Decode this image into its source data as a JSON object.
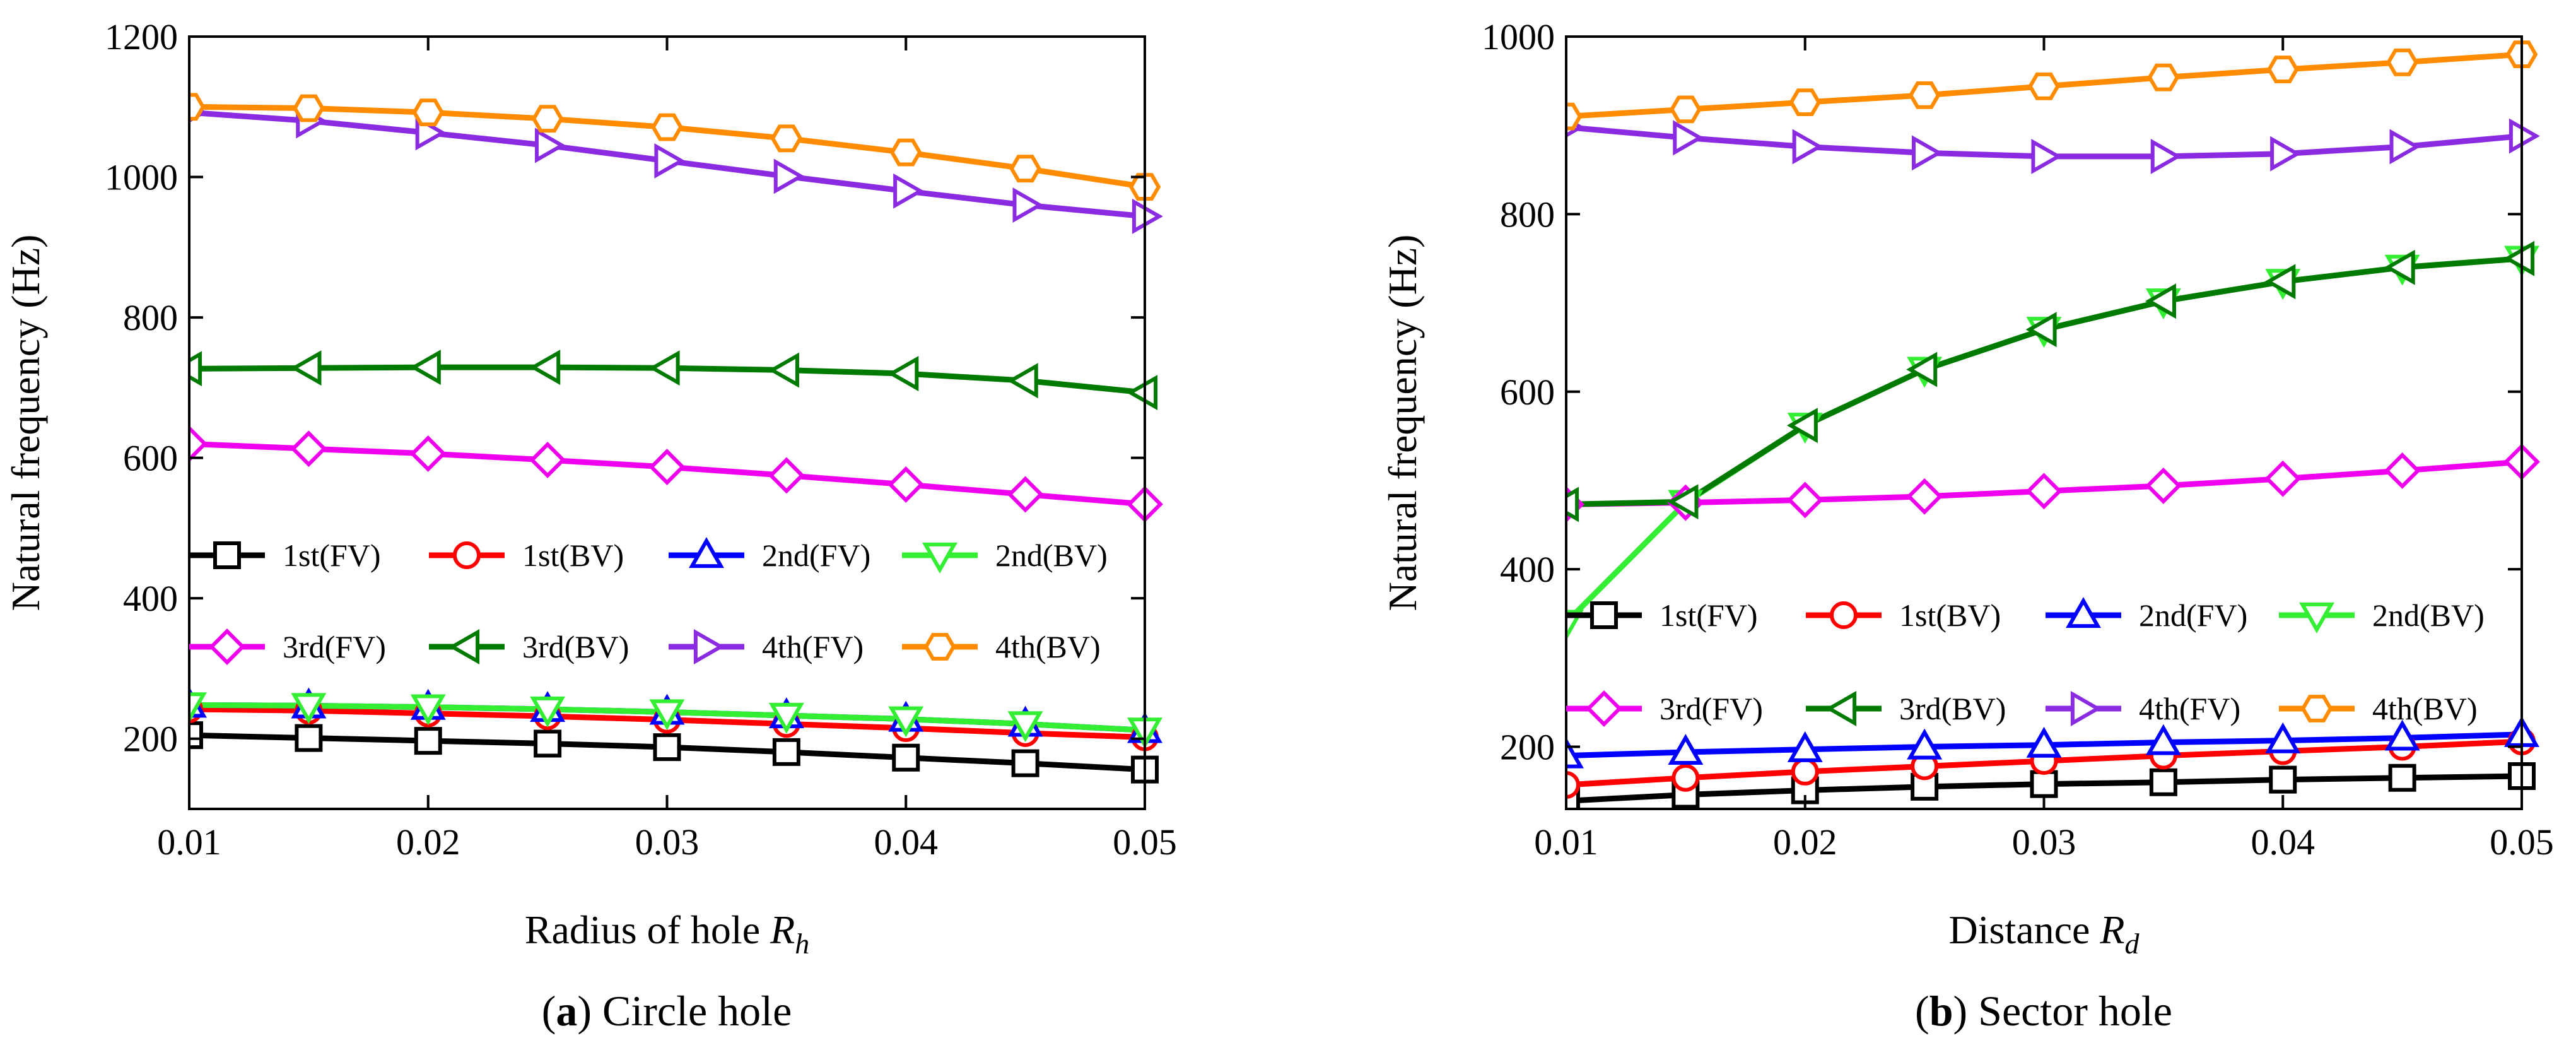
{
  "chart_data": [
    {
      "type": "line",
      "caption_tag": "(a)",
      "caption_text": "Circle hole",
      "xlabel": "Radius of hole R",
      "xlabel_sub": "h",
      "ylabel": "Natural frequency (Hz)",
      "xlim": [
        0.01,
        0.05
      ],
      "ylim": [
        100,
        1200
      ],
      "xticks": [
        "0.01",
        "0.02",
        "0.03",
        "0.04",
        "0.05"
      ],
      "xtick_values": [
        0.01,
        0.02,
        0.03,
        0.04,
        0.05
      ],
      "yticks": [
        "200",
        "400",
        "600",
        "800",
        "1000",
        "1200"
      ],
      "ytick_values": [
        200,
        400,
        600,
        800,
        1000,
        1200
      ],
      "x": [
        0.01,
        0.015,
        0.02,
        0.025,
        0.03,
        0.035,
        0.04,
        0.045,
        0.05
      ],
      "series": [
        {
          "name": "1st(FV)",
          "color": "#000000",
          "marker": "square",
          "values": [
            205,
            201,
            197,
            193,
            188,
            181,
            173,
            165,
            156
          ]
        },
        {
          "name": "1st(BV)",
          "color": "#ff0000",
          "marker": "circle",
          "values": [
            242,
            240,
            236,
            232,
            227,
            221,
            215,
            208,
            202
          ]
        },
        {
          "name": "2nd(FV)",
          "color": "#0000ff",
          "marker": "triangle-up",
          "values": [
            248,
            247,
            245,
            242,
            238,
            233,
            228,
            221,
            212
          ]
        },
        {
          "name": "2nd(BV)",
          "color": "#33ee33",
          "marker": "triangle-down",
          "values": [
            248,
            247,
            245,
            242,
            238,
            233,
            228,
            221,
            212
          ]
        },
        {
          "name": "3rd(FV)",
          "color": "#ee00ee",
          "marker": "diamond",
          "values": [
            620,
            613,
            606,
            597,
            587,
            575,
            562,
            548,
            534
          ]
        },
        {
          "name": "3rd(BV)",
          "color": "#007a00",
          "marker": "triangle-left",
          "values": [
            727,
            728,
            729,
            729,
            728,
            725,
            720,
            710,
            693
          ]
        },
        {
          "name": "4th(FV)",
          "color": "#8a2be2",
          "marker": "triangle-right",
          "values": [
            1092,
            1080,
            1063,
            1045,
            1023,
            1001,
            980,
            960,
            944
          ]
        },
        {
          "name": "4th(BV)",
          "color": "#ff8c00",
          "marker": "hexagon",
          "values": [
            1100,
            1098,
            1092,
            1083,
            1071,
            1055,
            1035,
            1012,
            986
          ]
        }
      ]
    },
    {
      "type": "line",
      "caption_tag": "(b)",
      "caption_text": "Sector hole",
      "xlabel": "Distance R",
      "xlabel_sub": "d",
      "ylabel": "Natural frequency (Hz)",
      "xlim": [
        0.01,
        0.05
      ],
      "ylim": [
        130,
        1000
      ],
      "xticks": [
        "0.01",
        "0.02",
        "0.03",
        "0.04",
        "0.05"
      ],
      "xtick_values": [
        0.01,
        0.02,
        0.03,
        0.04,
        0.05
      ],
      "yticks": [
        "200",
        "400",
        "600",
        "800",
        "1000"
      ],
      "ytick_values": [
        200,
        400,
        600,
        800,
        1000
      ],
      "x": [
        0.01,
        0.015,
        0.02,
        0.025,
        0.03,
        0.035,
        0.04,
        0.045,
        0.05
      ],
      "series": [
        {
          "name": "1st(FV)",
          "color": "#000000",
          "marker": "square",
          "values": [
            139,
            146,
            151,
            155,
            158,
            160,
            163,
            165,
            167
          ]
        },
        {
          "name": "1st(BV)",
          "color": "#ff0000",
          "marker": "circle",
          "values": [
            157,
            165,
            172,
            178,
            184,
            190,
            195,
            200,
            206
          ]
        },
        {
          "name": "2nd(FV)",
          "color": "#0000ff",
          "marker": "triangle-up",
          "values": [
            190,
            194,
            197,
            200,
            202,
            205,
            207,
            210,
            214
          ]
        },
        {
          "name": "2nd(BV)",
          "color": "#33ee33",
          "marker": "triangle-down",
          "values": [
            340,
            475,
            562,
            625,
            670,
            702,
            724,
            740,
            750
          ]
        },
        {
          "name": "3rd(FV)",
          "color": "#ee00ee",
          "marker": "diamond",
          "values": [
            473,
            475,
            478,
            482,
            488,
            494,
            502,
            511,
            521
          ]
        },
        {
          "name": "3rd(BV)",
          "color": "#007a00",
          "marker": "triangle-left",
          "values": [
            473,
            476,
            562,
            625,
            670,
            702,
            724,
            740,
            750
          ]
        },
        {
          "name": "4th(FV)",
          "color": "#8a2be2",
          "marker": "triangle-right",
          "values": [
            898,
            886,
            876,
            869,
            865,
            865,
            868,
            876,
            888
          ]
        },
        {
          "name": "4th(BV)",
          "color": "#ff8c00",
          "marker": "hexagon",
          "values": [
            910,
            918,
            926,
            934,
            944,
            954,
            963,
            971,
            980
          ]
        }
      ]
    }
  ]
}
